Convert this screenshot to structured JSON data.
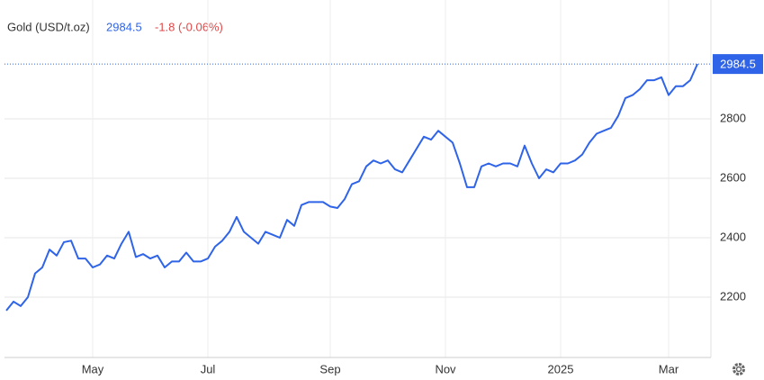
{
  "chart_data": {
    "type": "line",
    "title": "Gold (USD/t.oz)",
    "change": "-1.8 (-0.06%)",
    "categories": [
      null,
      null,
      null,
      null,
      null,
      null,
      null,
      null,
      null,
      null,
      null,
      null,
      "May",
      null,
      null,
      null,
      null,
      null,
      null,
      null,
      null,
      null,
      null,
      null,
      null,
      null,
      null,
      null,
      "Jul",
      null,
      null,
      null,
      null,
      null,
      null,
      null,
      null,
      null,
      null,
      null,
      null,
      null,
      null,
      null,
      null,
      "Sep",
      null,
      null,
      null,
      null,
      null,
      null,
      null,
      null,
      null,
      null,
      null,
      null,
      null,
      null,
      null,
      "Nov",
      null,
      null,
      null,
      null,
      null,
      null,
      null,
      null,
      null,
      null,
      null,
      null,
      null,
      null,
      null,
      "2025",
      null,
      null,
      null,
      null,
      null,
      null,
      null,
      null,
      null,
      null,
      null,
      null,
      null,
      null,
      "Mar",
      null,
      null,
      null,
      null
    ],
    "series": [
      {
        "name": "Gold",
        "color": "#2f64e8",
        "values": [
          2155,
          2185,
          2170,
          2200,
          2280,
          2300,
          2360,
          2340,
          2385,
          2390,
          2330,
          2330,
          2300,
          2310,
          2340,
          2330,
          2380,
          2420,
          2335,
          2345,
          2330,
          2340,
          2300,
          2320,
          2320,
          2350,
          2320,
          2320,
          2330,
          2370,
          2390,
          2420,
          2470,
          2420,
          2400,
          2380,
          2420,
          2410,
          2400,
          2460,
          2440,
          2510,
          2520,
          2520,
          2520,
          2505,
          2500,
          2530,
          2580,
          2590,
          2640,
          2660,
          2650,
          2660,
          2630,
          2620,
          2660,
          2700,
          2740,
          2730,
          2760,
          2740,
          2720,
          2650,
          2570,
          2570,
          2640,
          2650,
          2640,
          2650,
          2650,
          2640,
          2710,
          2650,
          2600,
          2630,
          2620,
          2650,
          2650,
          2660,
          2680,
          2720,
          2750,
          2760,
          2770,
          2810,
          2870,
          2880,
          2900,
          2930,
          2930,
          2940,
          2880,
          2910,
          2910,
          2930,
          2984.5
        ]
      }
    ],
    "ylim": [
      2000,
      3200
    ],
    "yticks": [
      2200,
      2400,
      2600,
      2800
    ],
    "grid": true
  }
}
